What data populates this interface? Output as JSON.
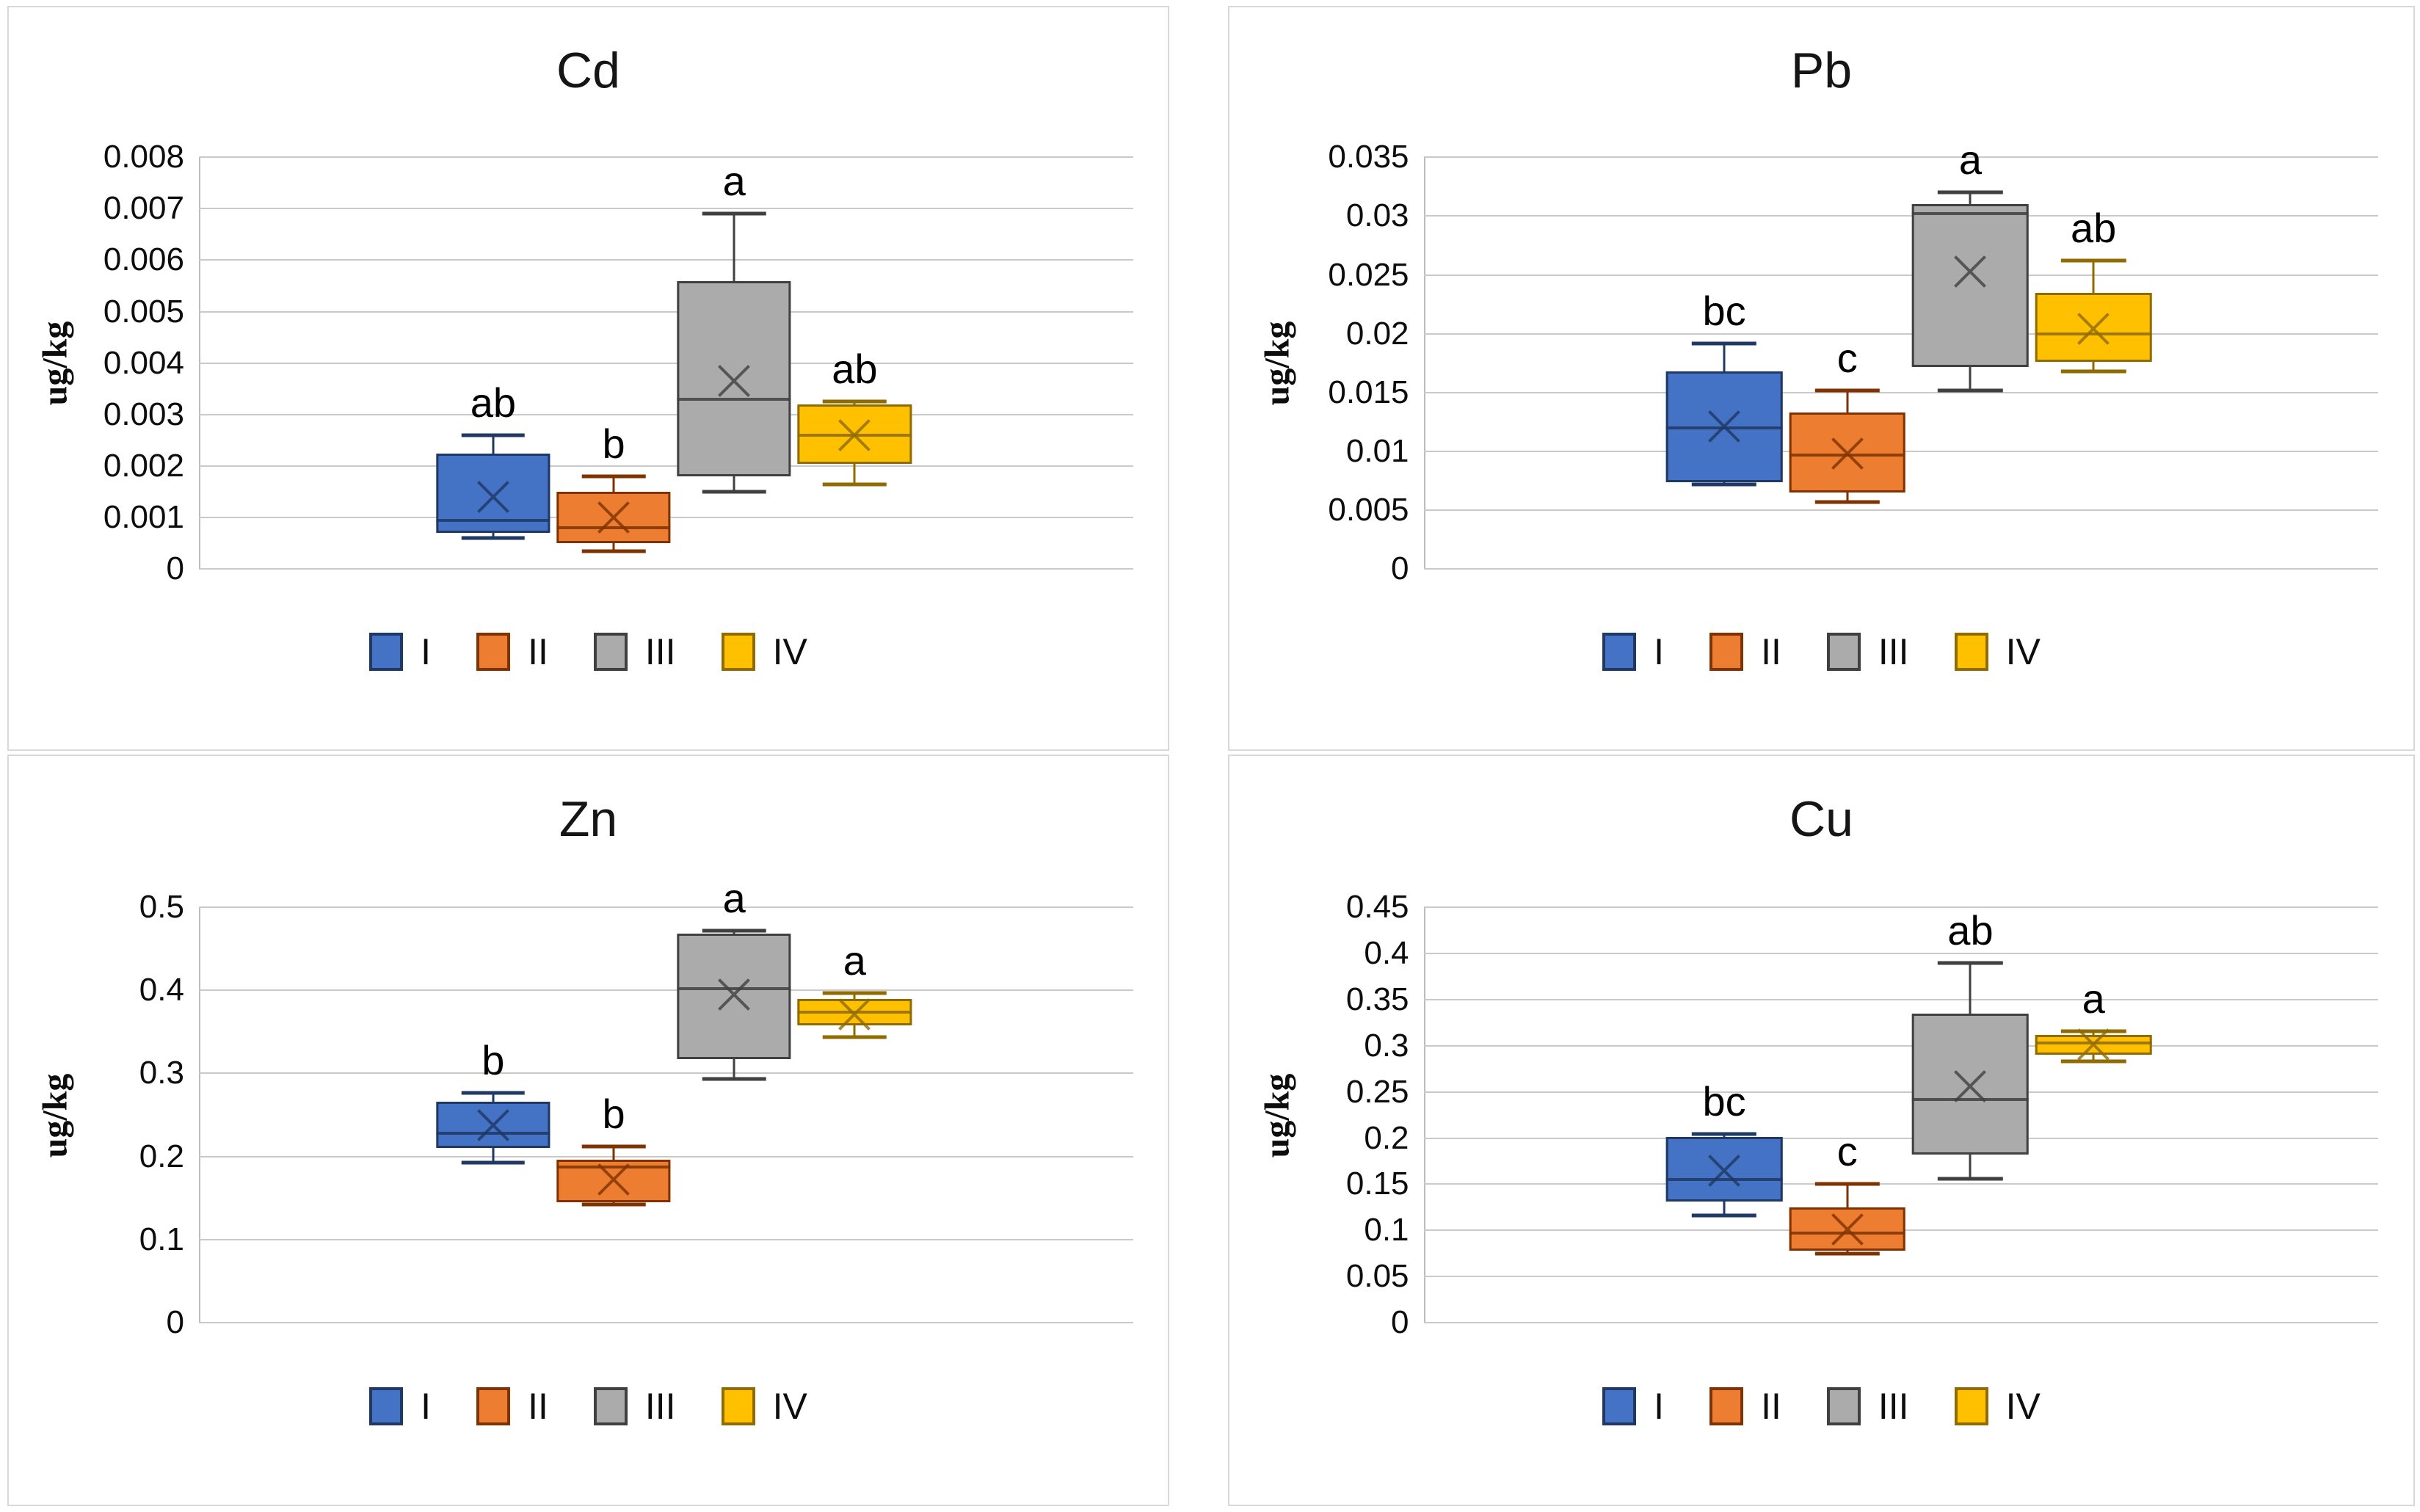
{
  "figure": {
    "description": "Four box-and-whisker charts of heavy metal concentrations (ug/kg) for groups I-IV",
    "panel_titles": [
      "Cd",
      "Pb",
      "Zn",
      "Cu"
    ]
  },
  "colors": {
    "gridline": "#c9c9c9",
    "axis_line": "#bdbdbd",
    "panel_border": "#d8d8d8",
    "text": "#0d0d0d"
  },
  "legend": {
    "items": [
      {
        "label": "I",
        "fill": "#4472C4",
        "border": "#1F3864"
      },
      {
        "label": "II",
        "fill": "#ED7D31",
        "border": "#7F3300"
      },
      {
        "label": "III",
        "fill": "#ABABAB",
        "border": "#404040"
      },
      {
        "label": "IV",
        "fill": "#FFC000",
        "border": "#8F6B00"
      }
    ]
  },
  "chart_data": [
    {
      "type": "box",
      "title": "Cd",
      "ylabel": "ug/kg",
      "ylim": [
        0,
        0.008
      ],
      "ytick_step": 0.001,
      "ytick_labels": [
        "0.008",
        "0.007",
        "0.006",
        "0.005",
        "0.004",
        "0.003",
        "0.002",
        "0.001",
        "0"
      ],
      "grid": true,
      "legend_position": "bottom",
      "categories": [
        "I",
        "II",
        "III",
        "IV"
      ],
      "series": [
        {
          "name": "I",
          "letter": "ab",
          "min": 0.0006,
          "q1": 0.0007,
          "median": 0.00095,
          "mean": 0.0014,
          "q3": 0.00225,
          "max": 0.0026,
          "pattern": false
        },
        {
          "name": "II",
          "letter": "b",
          "min": 0.00035,
          "q1": 0.0005,
          "median": 0.0008,
          "mean": 0.001,
          "q3": 0.0015,
          "max": 0.0018,
          "pattern": false
        },
        {
          "name": "III",
          "letter": "a",
          "min": 0.0015,
          "q1": 0.0018,
          "median": 0.0033,
          "mean": 0.00365,
          "q3": 0.0056,
          "max": 0.0069,
          "pattern": true
        },
        {
          "name": "IV",
          "letter": "ab",
          "min": 0.00165,
          "q1": 0.00205,
          "median": 0.0026,
          "mean": 0.0026,
          "q3": 0.0032,
          "max": 0.00325,
          "pattern": false
        }
      ]
    },
    {
      "type": "box",
      "title": "Pb",
      "ylabel": "ug/kg",
      "ylim": [
        0,
        0.035
      ],
      "ytick_step": 0.005,
      "ytick_labels": [
        "0.035",
        "0.03",
        "0.025",
        "0.02",
        "0.015",
        "0.01",
        "0.005",
        "0"
      ],
      "grid": true,
      "legend_position": "bottom",
      "categories": [
        "I",
        "II",
        "III",
        "IV"
      ],
      "series": [
        {
          "name": "I",
          "letter": "bc",
          "min": 0.0072,
          "q1": 0.0074,
          "median": 0.012,
          "mean": 0.0121,
          "q3": 0.0168,
          "max": 0.0192,
          "pattern": false
        },
        {
          "name": "II",
          "letter": "c",
          "min": 0.0057,
          "q1": 0.0065,
          "median": 0.0097,
          "mean": 0.0098,
          "q3": 0.0133,
          "max": 0.0152,
          "pattern": false
        },
        {
          "name": "III",
          "letter": "a",
          "min": 0.0152,
          "q1": 0.0172,
          "median": 0.0302,
          "mean": 0.0253,
          "q3": 0.031,
          "max": 0.032,
          "pattern": false
        },
        {
          "name": "IV",
          "letter": "ab",
          "min": 0.0168,
          "q1": 0.0176,
          "median": 0.02,
          "mean": 0.0204,
          "q3": 0.0235,
          "max": 0.0262,
          "pattern": false
        }
      ]
    },
    {
      "type": "box",
      "title": "Zn",
      "ylabel": "ug/kg",
      "ylim": [
        0,
        0.5
      ],
      "ytick_step": 0.1,
      "ytick_labels": [
        "0.5",
        "0.4",
        "0.3",
        "0.2",
        "0.1",
        "0"
      ],
      "grid": true,
      "legend_position": "bottom",
      "categories": [
        "I",
        "II",
        "III",
        "IV"
      ],
      "series": [
        {
          "name": "I",
          "letter": "b",
          "min": 0.193,
          "q1": 0.21,
          "median": 0.228,
          "mean": 0.238,
          "q3": 0.266,
          "max": 0.277,
          "pattern": false
        },
        {
          "name": "II",
          "letter": "b",
          "min": 0.142,
          "q1": 0.145,
          "median": 0.187,
          "mean": 0.172,
          "q3": 0.196,
          "max": 0.212,
          "pattern": false
        },
        {
          "name": "III",
          "letter": "a",
          "min": 0.293,
          "q1": 0.317,
          "median": 0.402,
          "mean": 0.395,
          "q3": 0.468,
          "max": 0.472,
          "pattern": false
        },
        {
          "name": "IV",
          "letter": "a",
          "min": 0.344,
          "q1": 0.358,
          "median": 0.374,
          "mean": 0.371,
          "q3": 0.39,
          "max": 0.397,
          "pattern": false
        }
      ]
    },
    {
      "type": "box",
      "title": "Cu",
      "ylabel": "ug/kg",
      "ylim": [
        0,
        0.45
      ],
      "ytick_step": 0.05,
      "ytick_labels": [
        "0.45",
        "0.4",
        "0.35",
        "0.3",
        "0.25",
        "0.2",
        "0.15",
        "0.1",
        "0.05",
        "0"
      ],
      "grid": true,
      "legend_position": "bottom",
      "categories": [
        "I",
        "II",
        "III",
        "IV"
      ],
      "series": [
        {
          "name": "I",
          "letter": "bc",
          "min": 0.116,
          "q1": 0.131,
          "median": 0.155,
          "mean": 0.165,
          "q3": 0.201,
          "max": 0.204,
          "pattern": false
        },
        {
          "name": "II",
          "letter": "c",
          "min": 0.075,
          "q1": 0.078,
          "median": 0.097,
          "mean": 0.101,
          "q3": 0.125,
          "max": 0.15,
          "pattern": false
        },
        {
          "name": "III",
          "letter": "ab",
          "min": 0.156,
          "q1": 0.182,
          "median": 0.242,
          "mean": 0.256,
          "q3": 0.335,
          "max": 0.39,
          "pattern": false
        },
        {
          "name": "IV",
          "letter": "a",
          "min": 0.283,
          "q1": 0.29,
          "median": 0.303,
          "mean": 0.301,
          "q3": 0.312,
          "max": 0.316,
          "pattern": false
        }
      ]
    }
  ]
}
